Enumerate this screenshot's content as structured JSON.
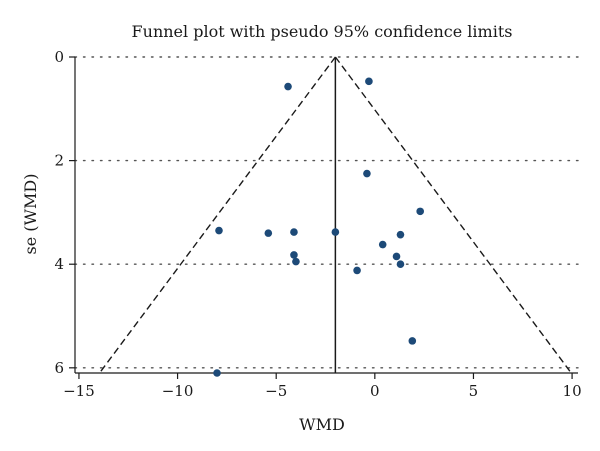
{
  "chart_data": {
    "type": "scatter",
    "title": "Funnel plot with pseudo 95% confidence limits",
    "xlabel": "WMD",
    "ylabel": "se (WMD)",
    "x_ticks": [
      -15,
      -10,
      -5,
      0,
      5,
      10
    ],
    "y_ticks": [
      0,
      2,
      4,
      6
    ],
    "xlim": [
      -15.2,
      10.3
    ],
    "ylim": [
      0,
      6.1
    ],
    "y_reversed": true,
    "grid": "horizontal dotted",
    "pooled_estimate": -2,
    "confidence_limit_z": 1.96,
    "line_color": "#1a1a1a",
    "point_color": "#1d4a78",
    "points": [
      {
        "x": -4.4,
        "y": 0.57
      },
      {
        "x": -0.3,
        "y": 0.47
      },
      {
        "x": -0.4,
        "y": 2.25
      },
      {
        "x": 2.3,
        "y": 2.98
      },
      {
        "x": -7.9,
        "y": 3.35
      },
      {
        "x": -5.4,
        "y": 3.4
      },
      {
        "x": -4.1,
        "y": 3.38
      },
      {
        "x": -2.0,
        "y": 3.38
      },
      {
        "x": 1.3,
        "y": 3.43
      },
      {
        "x": 0.4,
        "y": 3.62
      },
      {
        "x": -4.1,
        "y": 3.82
      },
      {
        "x": 1.1,
        "y": 3.85
      },
      {
        "x": -4.0,
        "y": 3.95
      },
      {
        "x": 1.3,
        "y": 4.0
      },
      {
        "x": -0.9,
        "y": 4.12
      },
      {
        "x": 1.9,
        "y": 5.48
      },
      {
        "x": -8.0,
        "y": 6.1
      }
    ]
  }
}
